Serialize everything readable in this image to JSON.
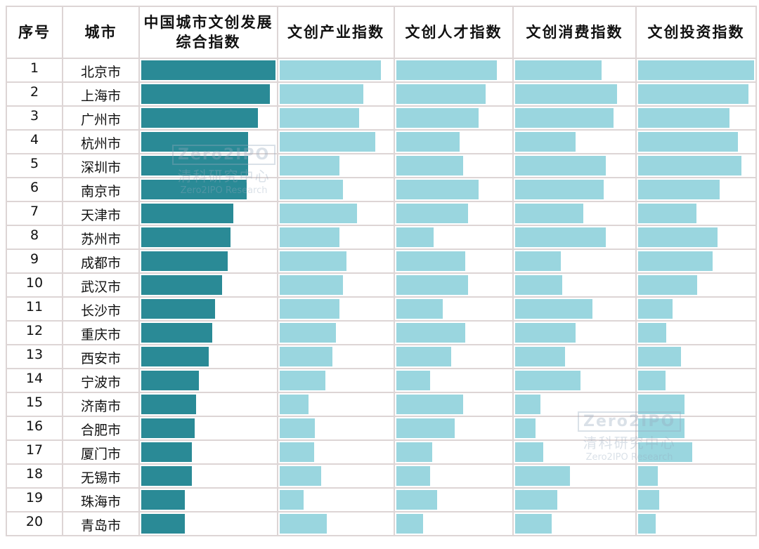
{
  "headers": [
    "序号",
    "城市",
    "中国城市文创发展综合指数",
    "文创产业指数",
    "文创人才指数",
    "文创消费指数",
    "文创投资指数"
  ],
  "colors": {
    "composite": "#2a8a96",
    "sub": "#9ad6df",
    "grid": "#ddd5d5"
  },
  "watermark": {
    "logo": "Zero2IPO",
    "cn": "清科研究中心",
    "en": "Zero2IPO Research"
  },
  "chart_data": {
    "type": "table",
    "value_unit": "bar fill, percent of column width (relative, unlabeled)",
    "columns": [
      "中国城市文创发展综合指数",
      "文创产业指数",
      "文创人才指数",
      "文创消费指数",
      "文创投资指数"
    ],
    "rows": [
      {
        "rank": "1",
        "city": "北京市",
        "values": [
          99,
          89,
          87,
          72,
          99
        ]
      },
      {
        "rank": "2",
        "city": "上海市",
        "values": [
          95,
          74,
          77,
          85,
          94
        ]
      },
      {
        "rank": "3",
        "city": "广州市",
        "values": [
          86,
          70,
          71,
          82,
          78
        ]
      },
      {
        "rank": "4",
        "city": "杭州市",
        "values": [
          79,
          84,
          55,
          51,
          85
        ]
      },
      {
        "rank": "5",
        "city": "深圳市",
        "values": [
          79,
          53,
          58,
          76,
          88
        ]
      },
      {
        "rank": "6",
        "city": "南京市",
        "values": [
          78,
          56,
          71,
          74,
          70
        ]
      },
      {
        "rank": "7",
        "city": "天津市",
        "values": [
          68,
          68,
          62,
          57,
          50
        ]
      },
      {
        "rank": "8",
        "city": "苏州市",
        "values": [
          66,
          53,
          33,
          76,
          68
        ]
      },
      {
        "rank": "9",
        "city": "成都市",
        "values": [
          64,
          59,
          60,
          39,
          64
        ]
      },
      {
        "rank": "10",
        "city": "武汉市",
        "values": [
          60,
          56,
          62,
          40,
          51
        ]
      },
      {
        "rank": "11",
        "city": "长沙市",
        "values": [
          55,
          53,
          41,
          65,
          30
        ]
      },
      {
        "rank": "12",
        "city": "重庆市",
        "values": [
          53,
          50,
          60,
          51,
          25
        ]
      },
      {
        "rank": "13",
        "city": "西安市",
        "values": [
          50,
          47,
          48,
          42,
          37
        ]
      },
      {
        "rank": "14",
        "city": "宁波市",
        "values": [
          43,
          41,
          30,
          55,
          24
        ]
      },
      {
        "rank": "15",
        "city": "济南市",
        "values": [
          41,
          26,
          58,
          22,
          40
        ]
      },
      {
        "rank": "16",
        "city": "合肥市",
        "values": [
          40,
          32,
          51,
          18,
          40
        ]
      },
      {
        "rank": "17",
        "city": "厦门市",
        "values": [
          38,
          31,
          32,
          24,
          47
        ]
      },
      {
        "rank": "18",
        "city": "无锡市",
        "values": [
          38,
          37,
          30,
          46,
          18
        ]
      },
      {
        "rank": "19",
        "city": "珠海市",
        "values": [
          33,
          22,
          36,
          36,
          19
        ]
      },
      {
        "rank": "20",
        "city": "青岛市",
        "values": [
          33,
          42,
          24,
          31,
          16
        ]
      }
    ]
  }
}
